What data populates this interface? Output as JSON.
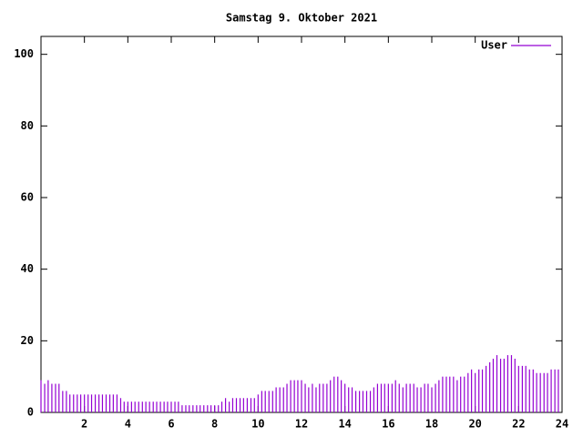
{
  "chart_data": {
    "type": "impulse",
    "title": "Samstag 9. Oktober 2021",
    "series": [
      {
        "name": "User",
        "color": "#9400d3",
        "x": [
          0,
          0.17,
          0.33,
          0.5,
          0.67,
          0.83,
          1,
          1.17,
          1.33,
          1.5,
          1.67,
          1.83,
          2,
          2.17,
          2.33,
          2.5,
          2.67,
          2.83,
          3,
          3.17,
          3.33,
          3.5,
          3.67,
          3.83,
          4,
          4.17,
          4.33,
          4.5,
          4.67,
          4.83,
          5,
          5.17,
          5.33,
          5.5,
          5.67,
          5.83,
          6,
          6.17,
          6.33,
          6.5,
          6.67,
          6.83,
          7,
          7.17,
          7.33,
          7.5,
          7.67,
          7.83,
          8,
          8.17,
          8.33,
          8.5,
          8.67,
          8.83,
          9,
          9.17,
          9.33,
          9.5,
          9.67,
          9.83,
          10,
          10.17,
          10.33,
          10.5,
          10.67,
          10.83,
          11,
          11.17,
          11.33,
          11.5,
          11.67,
          11.83,
          12,
          12.17,
          12.33,
          12.5,
          12.67,
          12.83,
          13,
          13.17,
          13.33,
          13.5,
          13.67,
          13.83,
          14,
          14.17,
          14.33,
          14.5,
          14.67,
          14.83,
          15,
          15.17,
          15.33,
          15.5,
          15.67,
          15.83,
          16,
          16.17,
          16.33,
          16.5,
          16.67,
          16.83,
          17,
          17.17,
          17.33,
          17.5,
          17.67,
          17.83,
          18,
          18.17,
          18.33,
          18.5,
          18.67,
          18.83,
          19,
          19.17,
          19.33,
          19.5,
          19.67,
          19.83,
          20,
          20.17,
          20.33,
          20.5,
          20.67,
          20.83,
          21,
          21.17,
          21.33,
          21.5,
          21.67,
          21.83,
          22,
          22.17,
          22.33,
          22.5,
          22.67,
          22.83,
          23,
          23.17,
          23.33,
          23.5,
          23.67,
          23.83
        ],
        "values": [
          9,
          8,
          9,
          8,
          8,
          8,
          6,
          6,
          5,
          5,
          5,
          5,
          5,
          5,
          5,
          5,
          5,
          5,
          5,
          5,
          5,
          5,
          4,
          3,
          3,
          3,
          3,
          3,
          3,
          3,
          3,
          3,
          3,
          3,
          3,
          3,
          3,
          3,
          3,
          2,
          2,
          2,
          2,
          2,
          2,
          2,
          2,
          2,
          2,
          2,
          3,
          4,
          3,
          4,
          4,
          4,
          4,
          4,
          4,
          4,
          5,
          6,
          6,
          6,
          6,
          7,
          7,
          7,
          8,
          9,
          9,
          9,
          9,
          8,
          7,
          8,
          7,
          8,
          8,
          8,
          9,
          10,
          10,
          9,
          8,
          7,
          7,
          6,
          6,
          6,
          6,
          6,
          7,
          8,
          8,
          8,
          8,
          8,
          9,
          8,
          7,
          8,
          8,
          8,
          7,
          7,
          8,
          8,
          7,
          8,
          9,
          10,
          10,
          10,
          10,
          9,
          10,
          10,
          11,
          12,
          11,
          12,
          12,
          13,
          14,
          15,
          16,
          15,
          15,
          16,
          16,
          15,
          13,
          13,
          13,
          12,
          12,
          11,
          11,
          11,
          11,
          12,
          12,
          12
        ]
      }
    ],
    "xlim": [
      0,
      24
    ],
    "xticks": [
      2,
      4,
      6,
      8,
      10,
      12,
      14,
      16,
      18,
      20,
      22,
      24
    ],
    "ylim": [
      0,
      105
    ],
    "yticks": [
      0,
      20,
      40,
      60,
      80,
      100
    ],
    "legend": "upper right"
  }
}
